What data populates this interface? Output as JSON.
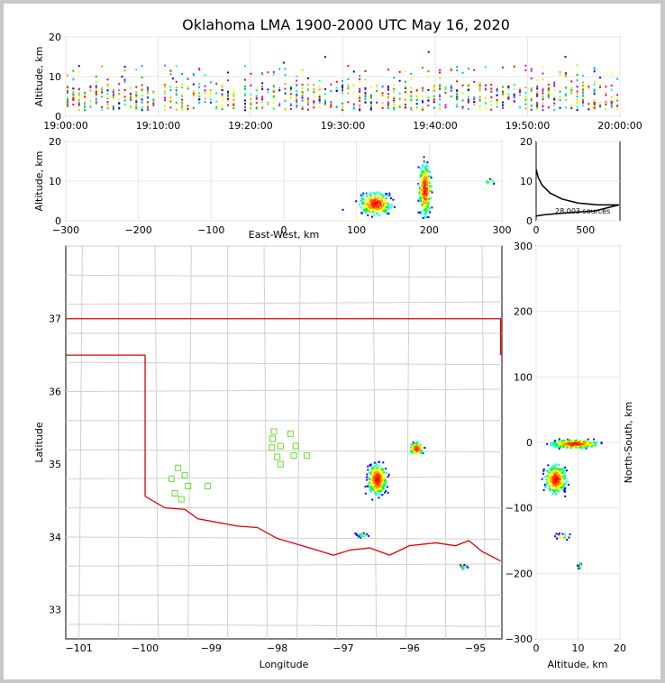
{
  "chart_data": [
    {
      "type": "scatter",
      "id": "time_height",
      "title": "Oklahoma LMA 1900-2000 UTC May 16, 2020",
      "xlabel": "",
      "ylabel": "Altitude, km",
      "xticks": [
        "19:00:00",
        "19:10:00",
        "19:20:00",
        "19:30:00",
        "19:40:00",
        "19:50:00",
        "20:00:00"
      ],
      "xlim_minutes": [
        0,
        60
      ],
      "ylim": [
        0,
        20
      ],
      "yticks": [
        0,
        10,
        20
      ],
      "grid": true,
      "color_encoding": "time (blue -> green -> yellow -> red)"
    },
    {
      "type": "scatter",
      "id": "east_west_height",
      "xlabel": "East-West, km",
      "ylabel": "Altitude, km",
      "xlim": [
        -300,
        300
      ],
      "xticks": [
        -300,
        -200,
        -100,
        0,
        100,
        200,
        300
      ],
      "ylim": [
        0,
        20
      ],
      "yticks": [
        0,
        10,
        20
      ],
      "grid": true,
      "clusters": [
        {
          "x": [
            95,
            150
          ],
          "y": [
            2,
            9
          ]
        },
        {
          "x": [
            180,
            205
          ],
          "y": [
            3,
            18
          ]
        },
        {
          "x": [
            270,
            295
          ],
          "y": [
            9,
            11
          ]
        }
      ]
    },
    {
      "type": "line",
      "id": "altitude_histogram",
      "xlim": [
        0,
        850
      ],
      "xticks": [
        0,
        500
      ],
      "ylim": [
        0,
        20
      ],
      "yticks": [
        0,
        10,
        20
      ],
      "annotation": "28,003 sources",
      "points": [
        [
          0,
          13
        ],
        [
          20,
          11
        ],
        [
          60,
          9
        ],
        [
          140,
          7
        ],
        [
          260,
          5.5
        ],
        [
          420,
          4.5
        ],
        [
          620,
          4
        ],
        [
          840,
          4
        ],
        [
          600,
          2.5
        ],
        [
          300,
          2
        ],
        [
          80,
          1.5
        ],
        [
          0,
          1.2
        ]
      ]
    },
    {
      "type": "scatter",
      "id": "plan_view",
      "xlabel": "Longitude",
      "ylabel": "Latitude",
      "xlim": [
        -101.2,
        -94.6
      ],
      "ylim": [
        32.6,
        38
      ],
      "xticks": [
        -101,
        -100,
        -99,
        -98,
        -97,
        -96,
        -95
      ],
      "yticks": [
        33,
        34,
        35,
        36,
        37
      ],
      "stations": [
        [
          -99.6,
          34.8
        ],
        [
          -99.5,
          34.95
        ],
        [
          -99.4,
          34.85
        ],
        [
          -99.35,
          34.7
        ],
        [
          -99.55,
          34.6
        ],
        [
          -99.45,
          34.52
        ],
        [
          -99.05,
          34.7
        ],
        [
          -98.05,
          35.45
        ],
        [
          -98.07,
          35.35
        ],
        [
          -98.08,
          35.23
        ],
        [
          -97.95,
          35.25
        ],
        [
          -98.0,
          35.1
        ],
        [
          -97.95,
          35.0
        ],
        [
          -97.8,
          35.42
        ],
        [
          -97.72,
          35.25
        ],
        [
          -97.75,
          35.12
        ],
        [
          -97.55,
          35.12
        ]
      ],
      "clusters": [
        {
          "lon": [
            -96.7,
            -96.3
          ],
          "lat": [
            34.5,
            35.1
          ]
        },
        {
          "lon": [
            -96.05,
            -95.75
          ],
          "lat": [
            35.1,
            35.35
          ]
        },
        {
          "lon": [
            -96.85,
            -96.6
          ],
          "lat": [
            34.0,
            34.08
          ]
        },
        {
          "lon": [
            -95.3,
            -95.1
          ],
          "lat": [
            33.55,
            33.65
          ]
        }
      ]
    },
    {
      "type": "scatter",
      "id": "north_south_height",
      "xlabel": "Altitude, km",
      "ylabel": "North-South, km",
      "xlim": [
        0,
        20
      ],
      "xticks": [
        0,
        10,
        20
      ],
      "ylim": [
        -300,
        300
      ],
      "yticks": [
        -300,
        -200,
        -100,
        0,
        100,
        200,
        300
      ],
      "grid": true,
      "clusters": [
        {
          "x": [
            1,
            17
          ],
          "y": [
            -10,
            8
          ]
        },
        {
          "x": [
            1,
            8
          ],
          "y": [
            -85,
            -25
          ]
        },
        {
          "x": [
            3,
            9
          ],
          "y": [
            -150,
            -135
          ]
        },
        {
          "x": [
            9.5,
            11
          ],
          "y": [
            -195,
            -180
          ]
        }
      ]
    }
  ]
}
